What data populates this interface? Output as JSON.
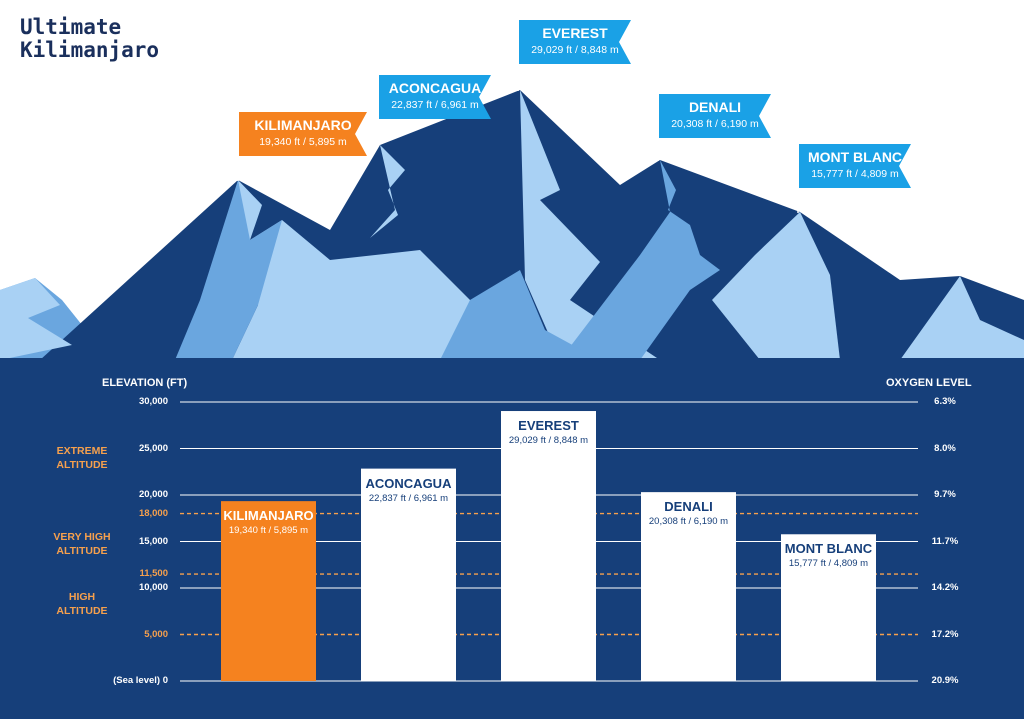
{
  "brand": {
    "line1": "Ultimate",
    "line2": "Kilimanjaro"
  },
  "colors": {
    "highlight": "#f5821f",
    "bar": "#ffffff",
    "panel": "#163f7a",
    "flag": "#1aa1e6",
    "zone_line": "#f6a04d",
    "grid": "#ffffff"
  },
  "chart_data": {
    "type": "bar",
    "title": "",
    "xlabel": "",
    "ylabel": "ELEVATION (FT)",
    "y2label": "OXYGEN LEVEL",
    "ylim": [
      0,
      30000
    ],
    "grid": true,
    "categories": [
      "KILIMANJARO",
      "ACONCAGUA",
      "EVEREST",
      "DENALI",
      "MONT BLANC"
    ],
    "values": [
      19340,
      22837,
      29029,
      20308,
      15777
    ],
    "value_labels": [
      "19,340 ft / 5,895 m",
      "22,837 ft / 6,961 m",
      "29,029 ft / 8,848 m",
      "20,308 ft / 6,190 m",
      "15,777 ft / 4,809 m"
    ],
    "highlight_index": 0,
    "y_ticks": [
      {
        "value": 0,
        "label": "(Sea level) 0"
      },
      {
        "value": 10000,
        "label": "10,000"
      },
      {
        "value": 15000,
        "label": "15,000"
      },
      {
        "value": 20000,
        "label": "20,000"
      },
      {
        "value": 25000,
        "label": "25,000"
      },
      {
        "value": 30000,
        "label": "30,000"
      }
    ],
    "zone_ticks": [
      {
        "value": 5000,
        "label": "5,000"
      },
      {
        "value": 11500,
        "label": "11,500"
      },
      {
        "value": 18000,
        "label": "18,000"
      }
    ],
    "oxygen_ticks": [
      {
        "value": 0,
        "label": "20.9%"
      },
      {
        "value": 5000,
        "label": "17.2%"
      },
      {
        "value": 10000,
        "label": "14.2%"
      },
      {
        "value": 15000,
        "label": "11.7%"
      },
      {
        "value": 20000,
        "label": "9.7%"
      },
      {
        "value": 25000,
        "label": "8.0%"
      },
      {
        "value": 30000,
        "label": "6.3%"
      }
    ],
    "zones": [
      {
        "lines": [
          "HIGH",
          "ALTITUDE"
        ],
        "from": 5000,
        "to": 11500
      },
      {
        "lines": [
          "VERY HIGH",
          "ALTITUDE"
        ],
        "from": 11500,
        "to": 18000
      },
      {
        "lines": [
          "EXTREME",
          "ALTITUDE"
        ],
        "from": 18000,
        "to": 30000
      }
    ]
  }
}
